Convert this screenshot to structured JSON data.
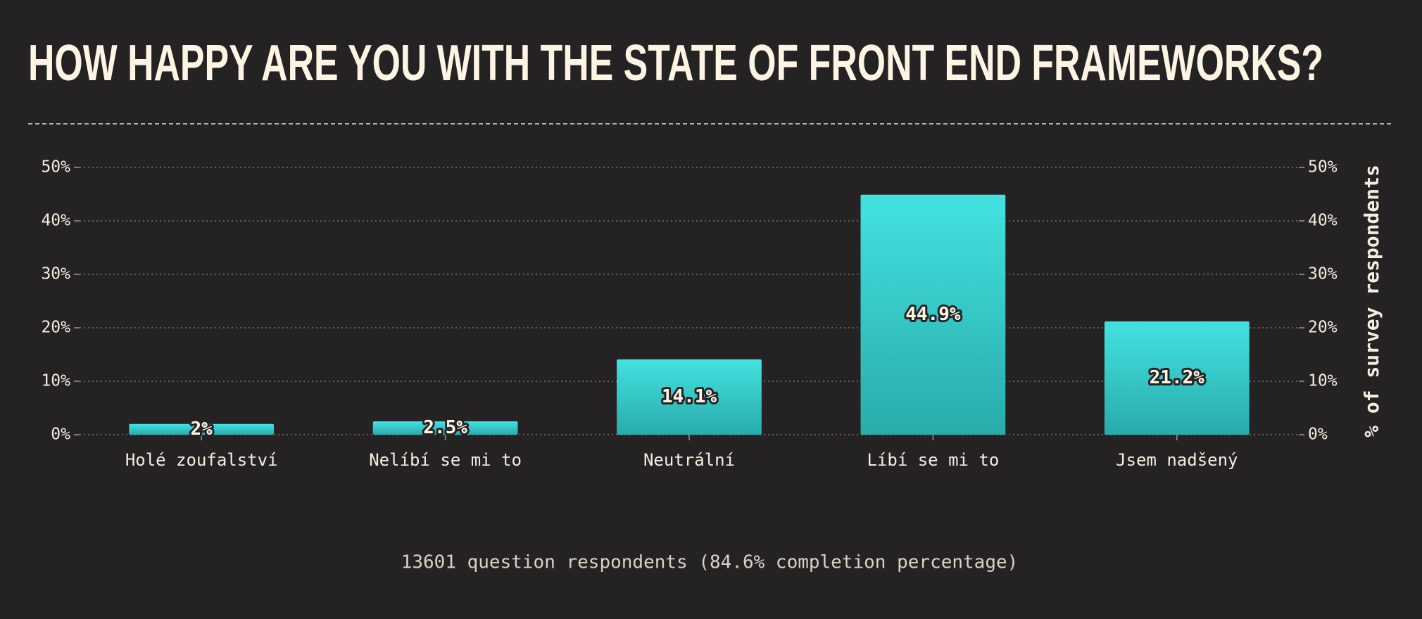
{
  "chart_data": {
    "type": "bar",
    "title": "HOW HAPPY ARE YOU WITH THE STATE OF FRONT END FRAMEWORKS?",
    "categories": [
      "Holé zoufalství",
      "Nelíbí se mi to",
      "Neutrální",
      "Líbí se mi to",
      "Jsem nadšený"
    ],
    "values": [
      2,
      2.5,
      14.1,
      44.9,
      21.2
    ],
    "value_labels": [
      "2%",
      "2.5%",
      "14.1%",
      "44.9%",
      "21.2%"
    ],
    "color": "#3bcfcf",
    "ylim": [
      0,
      50
    ],
    "yticks": [
      {
        "value": 0,
        "label": "0%"
      },
      {
        "value": 10,
        "label": "10%"
      },
      {
        "value": 20,
        "label": "20%"
      },
      {
        "value": 30,
        "label": "30%"
      },
      {
        "value": 40,
        "label": "40%"
      },
      {
        "value": 50,
        "label": "50%"
      }
    ],
    "y2lim": [
      0,
      50
    ],
    "y2ticks": [
      {
        "value": 0,
        "label": "0%"
      },
      {
        "value": 10,
        "label": "10%"
      },
      {
        "value": 20,
        "label": "20%"
      },
      {
        "value": 30,
        "label": "30%"
      },
      {
        "value": 40,
        "label": "40%"
      },
      {
        "value": 50,
        "label": "50%"
      }
    ],
    "y2label": "% of survey respondents",
    "grid": true,
    "note": "13601 question respondents (84.6% completion percentage)"
  }
}
